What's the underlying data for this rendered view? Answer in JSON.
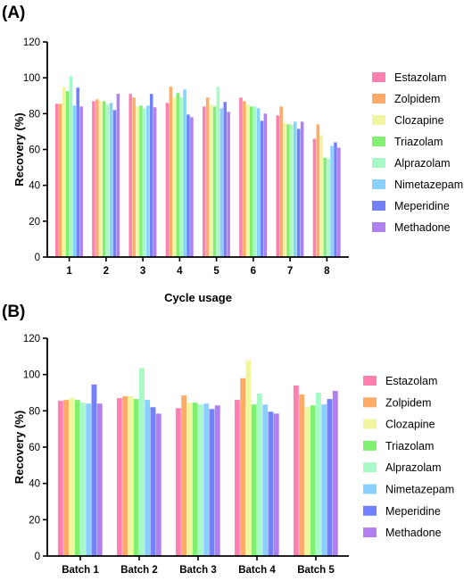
{
  "chart_data": [
    {
      "type": "bar",
      "panel": "(A)",
      "xlabel": "Cycle usage",
      "ylabel": "Recovery (%)",
      "ylim": [
        0,
        120
      ],
      "yticks": [
        0,
        20,
        40,
        60,
        80,
        100,
        120
      ],
      "legend_position": "right",
      "categories": [
        "1",
        "2",
        "3",
        "4",
        "5",
        "6",
        "7",
        "8"
      ],
      "series": [
        {
          "name": "Estazolam",
          "color": "#ff80b0",
          "values": [
            85.5,
            87,
            91,
            86,
            84,
            89,
            79,
            66
          ]
        },
        {
          "name": "Zolpidem",
          "color": "#ffaa66",
          "values": [
            85.5,
            88,
            89,
            95,
            89,
            87,
            84,
            74
          ]
        },
        {
          "name": "Clozapine",
          "color": "#f0f5a0",
          "values": [
            95,
            87,
            84,
            89,
            85,
            85,
            75,
            68
          ]
        },
        {
          "name": "Triazolam",
          "color": "#80f070",
          "values": [
            92.5,
            87,
            84.5,
            91.5,
            84,
            84,
            74,
            55.5
          ]
        },
        {
          "name": "Alprazolam",
          "color": "#a8f8c8",
          "values": [
            101,
            85,
            83,
            89,
            95,
            84,
            74,
            55
          ]
        },
        {
          "name": "Nimetazepam",
          "color": "#88d0ff",
          "values": [
            84.5,
            86,
            84.5,
            93.5,
            83,
            83,
            75.5,
            62
          ]
        },
        {
          "name": "Meperidine",
          "color": "#7080ff",
          "values": [
            94.5,
            82,
            91,
            79.5,
            86.5,
            76,
            71.5,
            64
          ]
        },
        {
          "name": "Methadone",
          "color": "#b080f0",
          "values": [
            84,
            91,
            83.5,
            78,
            81,
            80,
            75.5,
            61
          ]
        }
      ]
    },
    {
      "type": "bar",
      "panel": "(B)",
      "xlabel": "",
      "ylabel": "Recovery (%)",
      "ylim": [
        0,
        120
      ],
      "yticks": [
        0,
        20,
        40,
        60,
        80,
        100,
        120
      ],
      "legend_position": "right",
      "categories": [
        "Batch 1",
        "Batch 2",
        "Batch 3",
        "Batch 4",
        "Batch 5"
      ],
      "series": [
        {
          "name": "Estazolam",
          "color": "#ff80b0",
          "values": [
            85.5,
            87,
            81.5,
            86,
            94
          ]
        },
        {
          "name": "Zolpidem",
          "color": "#ffaa66",
          "values": [
            86,
            88,
            88.5,
            98,
            89
          ]
        },
        {
          "name": "Clozapine",
          "color": "#f0f5a0",
          "values": [
            87,
            88,
            84.5,
            108,
            82
          ]
        },
        {
          "name": "Triazolam",
          "color": "#80f070",
          "values": [
            86,
            86.5,
            84.5,
            83.5,
            83
          ]
        },
        {
          "name": "Alprazolam",
          "color": "#a8f8c8",
          "values": [
            84.5,
            103.5,
            83.5,
            89.5,
            90
          ]
        },
        {
          "name": "Nimetazepam",
          "color": "#88d0ff",
          "values": [
            84,
            86,
            84,
            83.5,
            83.5
          ]
        },
        {
          "name": "Meperidine",
          "color": "#7080ff",
          "values": [
            94.5,
            82,
            81,
            79.5,
            86.5
          ]
        },
        {
          "name": "Methadone",
          "color": "#b080f0",
          "values": [
            84,
            78.5,
            83,
            78.5,
            91
          ]
        }
      ]
    }
  ]
}
